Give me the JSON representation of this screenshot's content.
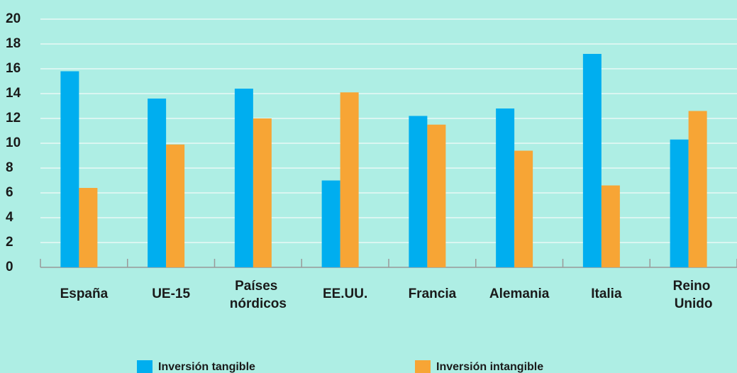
{
  "chart_data": {
    "type": "bar",
    "categories": [
      "España",
      "UE-15",
      "Países nórdicos",
      "EE.UU.",
      "Francia",
      "Alemania",
      "Italia",
      "Reino Unido"
    ],
    "series": [
      {
        "name": "Inversión tangible",
        "color": "#00aeef",
        "values": [
          15.8,
          13.6,
          14.4,
          7.0,
          12.2,
          12.8,
          17.2,
          10.3
        ]
      },
      {
        "name": "Inversión intangible",
        "color": "#f7a535",
        "values": [
          6.4,
          9.9,
          12.0,
          14.1,
          11.5,
          9.4,
          6.6,
          12.6
        ]
      }
    ],
    "ylim": [
      0,
      20
    ],
    "yticks": [
      0,
      2,
      4,
      6,
      8,
      10,
      12,
      14,
      16,
      18,
      20
    ],
    "grid": true
  }
}
